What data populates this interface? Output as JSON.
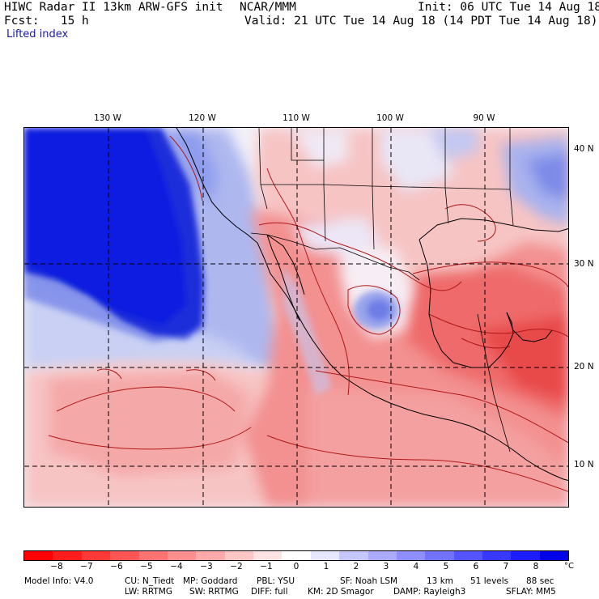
{
  "header": {
    "model_line": "HIWC Radar II 13km ARW-GFS init",
    "center": "NCAR/MMM",
    "init": "Init: 06 UTC Tue 14 Aug 18",
    "fcst": "Fcst:   15 h",
    "valid": "Valid: 21 UTC Tue 14 Aug 18 (14 PDT Tue 14 Aug 18)",
    "field": "Lifted index"
  },
  "map": {
    "lon_labels": [
      "130 W",
      "120 W",
      "110 W",
      "100 W",
      "90 W"
    ],
    "lat_labels": [
      "40 N",
      "30 N",
      "20 N",
      "10 N"
    ],
    "colors": {
      "ocean_cold": "#1a2fd9",
      "warm": "#ef6a6a",
      "hot": "#e83535"
    }
  },
  "legend": {
    "unit": "°C",
    "ticks": [
      "−8",
      "−7",
      "−6",
      "−5",
      "−4",
      "−3",
      "−2",
      "−1",
      "0",
      "1",
      "2",
      "3",
      "4",
      "5",
      "6",
      "7",
      "8"
    ],
    "colors": [
      "#ff0000",
      "#ff1c1c",
      "#ff3838",
      "#ff5555",
      "#ff7272",
      "#ff8e8e",
      "#ffaaaa",
      "#ffc6c6",
      "#ffe2e2",
      "#ffffff",
      "#e6e6ff",
      "#c6c6ff",
      "#aaaaff",
      "#8e8eff",
      "#7272ff",
      "#5555ff",
      "#3838ff",
      "#1c1cff",
      "#0000e8"
    ]
  },
  "footer": {
    "model_info": "Model Info: V4.0",
    "cu": "CU: N_Tiedt",
    "mp": "MP: Goddard",
    "pbl": "PBL: YSU",
    "sf": "SF: Noah LSM",
    "res": "13 km",
    "levels": "51 levels",
    "dt": "88 sec",
    "lw": "LW: RRTMG",
    "sw": "SW: RRTMG",
    "diff": "DIFF: full",
    "km": "KM: 2D Smagor",
    "damp": "DAMP: Rayleigh3",
    "sflay": "SFLAY: MM5"
  }
}
